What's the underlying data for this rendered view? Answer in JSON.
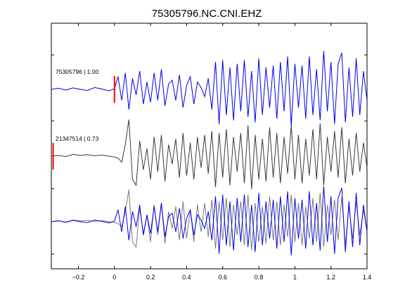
{
  "chart_data": {
    "type": "line",
    "title": "75305796.NC.CNI.EHZ",
    "xlabel": "",
    "ylabel": "",
    "xlim": [
      -0.35,
      1.4
    ],
    "xticks": [
      -0.2,
      0,
      0.2,
      0.4,
      0.6,
      0.8,
      1,
      1.2,
      1.4
    ],
    "xtick_labels": [
      "−0.2",
      "0",
      "0.2",
      "0.4",
      "0.6",
      "0.8",
      "1",
      "1.2",
      "1.4"
    ],
    "grid": false,
    "legend": "none",
    "colors": {
      "reference": "#0000ee",
      "match": "#3a3a3a",
      "match_overlay": "#7a7a7a",
      "pick": "#ff0000",
      "axis": "#000000"
    },
    "traces": [
      {
        "label": "75305796 | 1.00",
        "color": "#0000ee",
        "pick_time": 0.0,
        "x": [
          -0.35,
          -0.31,
          -0.27,
          -0.23,
          -0.19,
          -0.15,
          -0.11,
          -0.07,
          -0.03,
          0.0,
          0.02,
          0.04,
          0.06,
          0.08,
          0.1,
          0.12,
          0.14,
          0.16,
          0.18,
          0.2,
          0.22,
          0.24,
          0.26,
          0.28,
          0.3,
          0.32,
          0.34,
          0.36,
          0.38,
          0.4,
          0.42,
          0.44,
          0.46,
          0.48,
          0.5,
          0.52,
          0.54,
          0.56,
          0.58,
          0.6,
          0.62,
          0.64,
          0.66,
          0.68,
          0.7,
          0.72,
          0.74,
          0.76,
          0.78,
          0.8,
          0.82,
          0.84,
          0.86,
          0.88,
          0.9,
          0.92,
          0.94,
          0.96,
          0.98,
          1.0,
          1.02,
          1.04,
          1.06,
          1.08,
          1.1,
          1.12,
          1.14,
          1.16,
          1.18,
          1.2,
          1.22,
          1.24,
          1.26,
          1.28,
          1.3,
          1.32,
          1.34,
          1.36,
          1.38,
          1.4
        ],
        "y": [
          0.0,
          0.03,
          -0.02,
          0.04,
          0.0,
          -0.03,
          0.05,
          0.01,
          -0.04,
          0.02,
          0.35,
          -0.3,
          0.45,
          -0.55,
          0.3,
          -0.15,
          0.5,
          -0.4,
          0.2,
          -0.35,
          0.45,
          -0.3,
          0.55,
          -0.45,
          0.15,
          0.25,
          -0.3,
          0.4,
          -0.5,
          0.1,
          0.35,
          -0.4,
          0.2,
          0.05,
          -0.2,
          0.3,
          -0.55,
          0.75,
          -0.95,
          0.8,
          -0.7,
          0.6,
          -0.85,
          0.7,
          -0.6,
          0.8,
          -0.75,
          0.5,
          -0.9,
          0.85,
          -0.7,
          0.6,
          -0.5,
          0.65,
          -0.8,
          0.75,
          -0.6,
          0.9,
          -1.0,
          0.7,
          -0.5,
          0.65,
          -0.8,
          0.9,
          -0.7,
          0.55,
          -0.85,
          1.05,
          -0.6,
          0.75,
          -0.95,
          0.7,
          1.0,
          -0.9,
          0.6,
          -0.75,
          0.85,
          -0.7,
          0.5,
          -0.3
        ]
      },
      {
        "label": "21347514 | 0.73",
        "color": "#3a3a3a",
        "pick_time": -0.34,
        "x": [
          -0.35,
          -0.31,
          -0.27,
          -0.23,
          -0.19,
          -0.15,
          -0.11,
          -0.07,
          -0.03,
          0.0,
          0.02,
          0.04,
          0.06,
          0.08,
          0.1,
          0.12,
          0.14,
          0.16,
          0.18,
          0.2,
          0.22,
          0.24,
          0.26,
          0.28,
          0.3,
          0.32,
          0.34,
          0.36,
          0.38,
          0.4,
          0.42,
          0.44,
          0.46,
          0.48,
          0.5,
          0.52,
          0.54,
          0.56,
          0.58,
          0.6,
          0.62,
          0.64,
          0.66,
          0.68,
          0.7,
          0.72,
          0.74,
          0.76,
          0.78,
          0.8,
          0.82,
          0.84,
          0.86,
          0.88,
          0.9,
          0.92,
          0.94,
          0.96,
          0.98,
          1.0,
          1.02,
          1.04,
          1.06,
          1.08,
          1.1,
          1.12,
          1.14,
          1.16,
          1.18,
          1.2,
          1.22,
          1.24,
          1.26,
          1.28,
          1.3,
          1.32,
          1.34,
          1.36,
          1.38,
          1.4
        ],
        "y": [
          0.0,
          0.02,
          -0.01,
          0.05,
          0.02,
          0.04,
          0.01,
          0.03,
          0.0,
          -0.02,
          -0.05,
          -0.15,
          0.3,
          0.95,
          -0.6,
          -0.75,
          0.4,
          -0.35,
          0.2,
          -0.6,
          0.5,
          -0.4,
          0.55,
          -0.65,
          0.3,
          -0.2,
          0.45,
          -0.55,
          0.6,
          -0.5,
          0.35,
          -0.6,
          0.5,
          -0.3,
          0.55,
          -0.45,
          0.65,
          -0.8,
          0.6,
          -0.55,
          0.7,
          -0.75,
          0.5,
          -0.4,
          0.6,
          -0.7,
          0.8,
          -0.85,
          0.55,
          -0.6,
          0.45,
          -0.65,
          0.75,
          -0.55,
          0.6,
          -0.7,
          0.5,
          -0.45,
          0.8,
          -0.6,
          0.55,
          -0.7,
          0.45,
          -0.5,
          0.7,
          -0.6,
          0.85,
          -0.75,
          0.5,
          -0.4,
          0.65,
          -0.55,
          0.75,
          -0.7,
          0.45,
          -0.5,
          0.6,
          -0.4,
          0.35,
          -0.3
        ]
      }
    ]
  }
}
